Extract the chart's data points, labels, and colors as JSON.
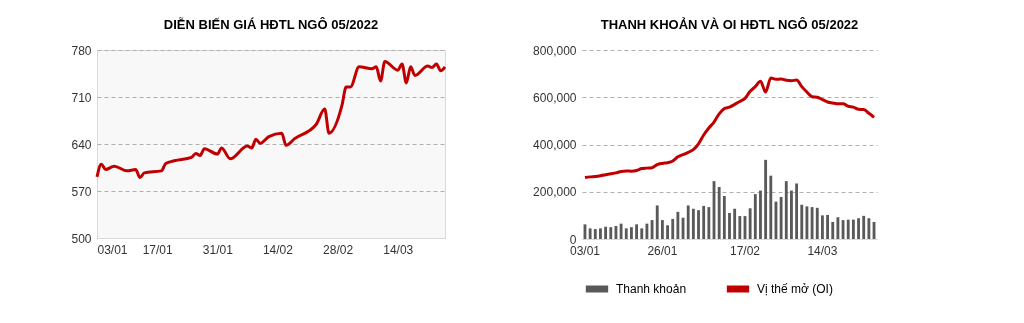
{
  "chart_data": [
    {
      "type": "line",
      "title": "DIỄN BIẾN GIÁ HĐTL NGÔ 05/2022",
      "grid": "y",
      "xlim": [
        "2022-01-03",
        "2022-03-25"
      ],
      "xticks": [
        {
          "value": "2022-01-03",
          "label": "03/01"
        },
        {
          "value": "2022-01-17",
          "label": "17/01"
        },
        {
          "value": "2022-01-31",
          "label": "31/01"
        },
        {
          "value": "2022-02-14",
          "label": "14/02"
        },
        {
          "value": "2022-02-28",
          "label": "28/02"
        },
        {
          "value": "2022-03-14",
          "label": "14/03"
        }
      ],
      "ylim": [
        500,
        780
      ],
      "yticks": [
        500,
        570,
        640,
        710,
        780
      ],
      "x": [
        "2022-01-03",
        "2022-01-04",
        "2022-01-05",
        "2022-01-07",
        "2022-01-10",
        "2022-01-12",
        "2022-01-13",
        "2022-01-14",
        "2022-01-18",
        "2022-01-19",
        "2022-01-21",
        "2022-01-25",
        "2022-01-26",
        "2022-01-27",
        "2022-01-28",
        "2022-01-31",
        "2022-02-01",
        "2022-02-03",
        "2022-02-07",
        "2022-02-08",
        "2022-02-09",
        "2022-02-10",
        "2022-02-12",
        "2022-02-15",
        "2022-02-16",
        "2022-02-18",
        "2022-02-23",
        "2022-02-25",
        "2022-02-26",
        "2022-03-01",
        "2022-03-02",
        "2022-03-03",
        "2022-03-05",
        "2022-03-08",
        "2022-03-09",
        "2022-03-10",
        "2022-03-11",
        "2022-03-14",
        "2022-03-15",
        "2022-03-16",
        "2022-03-17",
        "2022-03-18",
        "2022-03-21",
        "2022-03-22",
        "2022-03-23",
        "2022-03-24",
        "2022-03-25"
      ],
      "series": [
        {
          "color": "#c00000",
          "values": [
            591,
            610,
            602,
            607,
            600,
            602,
            590,
            597,
            600,
            611,
            615,
            620,
            626,
            623,
            633,
            625,
            634,
            618,
            637,
            634,
            647,
            641,
            651,
            656,
            638,
            648,
            669,
            692,
            656,
            697,
            725,
            725,
            755,
            752,
            755,
            734,
            763,
            750,
            759,
            731,
            755,
            742,
            756,
            754,
            759,
            749,
            755
          ]
        }
      ]
    },
    {
      "type": "bar",
      "title": "THANH KHOẢN VÀ OI HĐTL NGÔ 05/2022",
      "grid": "y",
      "legend": "bottom",
      "categories": [
        "03/01",
        null,
        null,
        null,
        null,
        null,
        null,
        null,
        null,
        null,
        null,
        null,
        null,
        null,
        null,
        "26/01",
        null,
        null,
        null,
        null,
        null,
        null,
        null,
        null,
        null,
        null,
        null,
        null,
        null,
        null,
        null,
        "17/02",
        null,
        null,
        null,
        null,
        null,
        null,
        null,
        null,
        null,
        null,
        null,
        null,
        null,
        null,
        "14/03",
        null,
        null,
        null,
        null,
        null,
        null,
        null,
        null,
        null,
        null
      ],
      "ylim": [
        0,
        800000
      ],
      "yticks": [
        {
          "value": 0,
          "label": "0"
        },
        {
          "value": 200000,
          "label": "200,000"
        },
        {
          "value": 400000,
          "label": "400,000"
        },
        {
          "value": 600000,
          "label": "600,000"
        },
        {
          "value": 800000,
          "label": "800,000"
        }
      ],
      "series": [
        {
          "name": "Thanh khoản",
          "color": "#595959",
          "values": [
            62000,
            45000,
            42000,
            45000,
            52000,
            50000,
            55000,
            65000,
            45000,
            50000,
            62000,
            45000,
            65000,
            80000,
            142000,
            80000,
            58000,
            85000,
            115000,
            90000,
            142000,
            128000,
            122000,
            140000,
            135000,
            245000,
            220000,
            182000,
            110000,
            128000,
            97000,
            97000,
            130000,
            190000,
            205000,
            335000,
            268000,
            158000,
            178000,
            245000,
            205000,
            235000,
            145000,
            138000,
            135000,
            132000,
            100000,
            102000,
            72000,
            92000,
            80000,
            82000,
            82000,
            88000,
            98000,
            88000,
            72000
          ]
        },
        {
          "type": "line",
          "name": "Vị thế mở (OI)",
          "color": "#c00000",
          "values": [
            260000,
            263000,
            265000,
            268000,
            272000,
            276000,
            280000,
            286000,
            288000,
            287000,
            290000,
            298000,
            300000,
            302000,
            315000,
            320000,
            323000,
            330000,
            348000,
            357000,
            367000,
            378000,
            403000,
            440000,
            470000,
            495000,
            530000,
            552000,
            558000,
            570000,
            582000,
            595000,
            625000,
            645000,
            668000,
            622000,
            682000,
            676000,
            677000,
            672000,
            670000,
            673000,
            645000,
            622000,
            602000,
            600000,
            590000,
            580000,
            576000,
            572000,
            572000,
            562000,
            558000,
            549000,
            548000,
            532000,
            515000
          ]
        }
      ]
    }
  ]
}
